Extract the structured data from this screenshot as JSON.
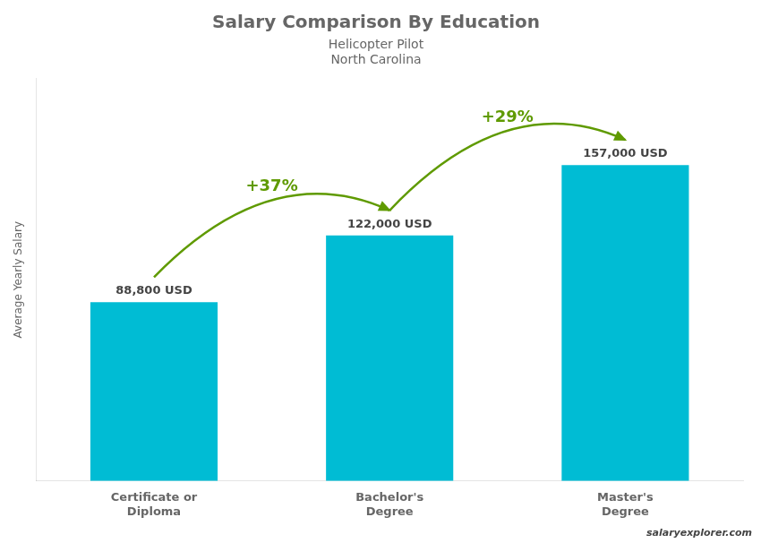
{
  "chart_data": {
    "type": "bar",
    "title": "Salary Comparison By Education",
    "subtitle": [
      "Helicopter Pilot",
      "North Carolina"
    ],
    "categories": [
      "Certificate or\nDiploma",
      "Bachelor's\nDegree",
      "Master's\nDegree"
    ],
    "values": [
      88800,
      122000,
      157000
    ],
    "value_labels": [
      "88,800 USD",
      "122,000 USD",
      "157,000 USD"
    ],
    "data_labels": true,
    "annotations": [
      "+37%",
      "+29%",
      "salaryexplorer.com"
    ],
    "color": "#00bcd4",
    "ylabel": "Average Yearly Salary",
    "ylim": [
      0,
      200000
    ],
    "grid": false,
    "legend": "none",
    "tick_labels": "x"
  }
}
